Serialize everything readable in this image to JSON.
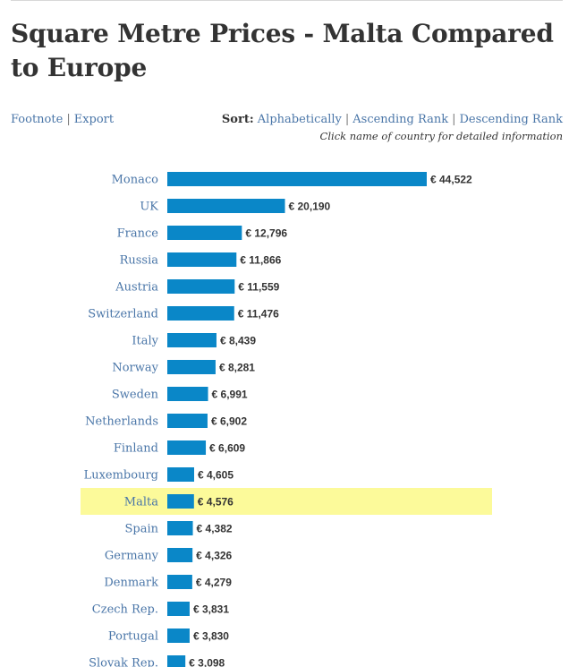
{
  "header": {
    "title": "Square Metre Prices - Malta Compared to Europe"
  },
  "links": {
    "footnote": "Footnote",
    "separator": "|",
    "export": "Export"
  },
  "sort": {
    "label": "Sort:",
    "alphabetically": "Alphabetically",
    "ascending": "Ascending Rank",
    "descending": "Descending Rank",
    "separator": "|"
  },
  "hint": "Click name of country for detailed information",
  "colors": {
    "bar": "#0a87c8",
    "highlight": "#fcfa9a",
    "link": "#4a76a8",
    "text": "#333333"
  },
  "chart_data": {
    "type": "bar",
    "orientation": "horizontal",
    "title": "Square Metre Prices - Malta Compared to Europe",
    "value_prefix": "€ ",
    "highlight": "Malta",
    "xlim": [
      0,
      44522
    ],
    "categories": [
      "Monaco",
      "UK",
      "France",
      "Russia",
      "Austria",
      "Switzerland",
      "Italy",
      "Norway",
      "Sweden",
      "Netherlands",
      "Finland",
      "Luxembourg",
      "Malta",
      "Spain",
      "Germany",
      "Denmark",
      "Czech Rep.",
      "Portugal",
      "Slovak Rep."
    ],
    "values": [
      44522,
      20190,
      12796,
      11866,
      11559,
      11476,
      8439,
      8281,
      6991,
      6902,
      6609,
      4605,
      4576,
      4382,
      4326,
      4279,
      3831,
      3830,
      3098
    ],
    "value_labels": [
      "44,522",
      "20,190",
      "12,796",
      "11,866",
      "11,559",
      "11,476",
      "8,439",
      "8,281",
      "6,991",
      "6,902",
      "6,609",
      "4,605",
      "4,576",
      "4,382",
      "4,326",
      "4,279",
      "3,831",
      "3,830",
      "3,098"
    ]
  }
}
